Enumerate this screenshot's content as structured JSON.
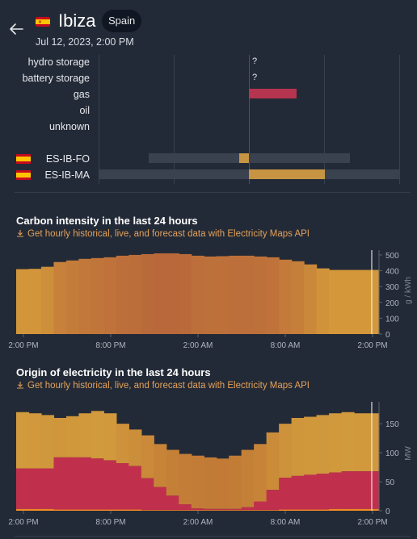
{
  "header": {
    "zone_name": "Ibiza",
    "country_badge": "Spain",
    "datetime": "Jul 12, 2023, 2:00 PM",
    "back_icon": "arrow-left-icon",
    "flag_icon": "spain-flag-icon"
  },
  "mix": {
    "rows": [
      {
        "label": "hydro storage",
        "value": "?"
      },
      {
        "label": "battery storage",
        "value": "?"
      },
      {
        "label": "gas",
        "value": ""
      },
      {
        "label": "oil",
        "value": ""
      },
      {
        "label": "unknown",
        "value": ""
      }
    ],
    "exchanges": [
      {
        "label": "ES-IB-FO",
        "flag": "spain-flag-icon"
      },
      {
        "label": "ES-IB-MA",
        "flag": "spain-flag-icon"
      }
    ],
    "colors": {
      "gas": "#b5344f",
      "exchange": "#c79443",
      "track": "#3a424f"
    }
  },
  "carbon": {
    "title": "Carbon intensity in the last 24 hours",
    "link": "Get hourly historical, live, and forecast data with Electricity Maps API"
  },
  "origin": {
    "title": "Origin of electricity in the last 24 hours",
    "link": "Get hourly historical, live, and forecast data with Electricity Maps API"
  },
  "chart_data": [
    {
      "type": "bar",
      "title": "Carbon intensity in the last 24 hours",
      "ylabel": "g / kWh",
      "ylim": [
        0,
        520
      ],
      "yticks": [
        "500",
        "400",
        "300",
        "200",
        "100",
        "0"
      ],
      "xticks": [
        "2:00 PM",
        "8:00 PM",
        "2:00 AM",
        "8:00 AM",
        "2:00 PM"
      ],
      "values": [
        410,
        412,
        425,
        455,
        465,
        475,
        480,
        485,
        495,
        500,
        505,
        510,
        510,
        505,
        495,
        490,
        492,
        495,
        495,
        490,
        485,
        470,
        460,
        440,
        415,
        405,
        405,
        405,
        405
      ],
      "colors": [
        "#d59a3a",
        "#c27a36",
        "#b8683a"
      ]
    },
    {
      "type": "area",
      "title": "Origin of electricity in the last 24 hours",
      "ylabel": "MW",
      "ylim": [
        0,
        185
      ],
      "yticks": [
        "150",
        "100",
        "50",
        "0"
      ],
      "xticks": [
        "2:00 PM",
        "8:00 PM",
        "2:00 AM",
        "8:00 AM",
        "2:00 PM"
      ],
      "series": [
        {
          "values": [
            3,
            3,
            3,
            2,
            2,
            2,
            2,
            2,
            2,
            2,
            1,
            1,
            1,
            1,
            1,
            1,
            1,
            1,
            1,
            1,
            1,
            2,
            2,
            2,
            2,
            3,
            3,
            3,
            3
          ]
        },
        {
          "values": [
            70,
            70,
            70,
            90,
            90,
            90,
            88,
            85,
            80,
            75,
            55,
            40,
            25,
            10,
            3,
            2,
            2,
            2,
            5,
            15,
            35,
            55,
            58,
            60,
            62,
            63,
            65,
            65,
            65
          ]
        },
        {
          "values": [
            170,
            168,
            165,
            160,
            163,
            168,
            172,
            168,
            150,
            140,
            130,
            115,
            105,
            98,
            95,
            92,
            90,
            95,
            105,
            115,
            135,
            150,
            160,
            162,
            165,
            168,
            170,
            168,
            168
          ]
        }
      ],
      "colors": [
        "#f08a24",
        "#c0304d",
        "#c27a36"
      ]
    }
  ]
}
